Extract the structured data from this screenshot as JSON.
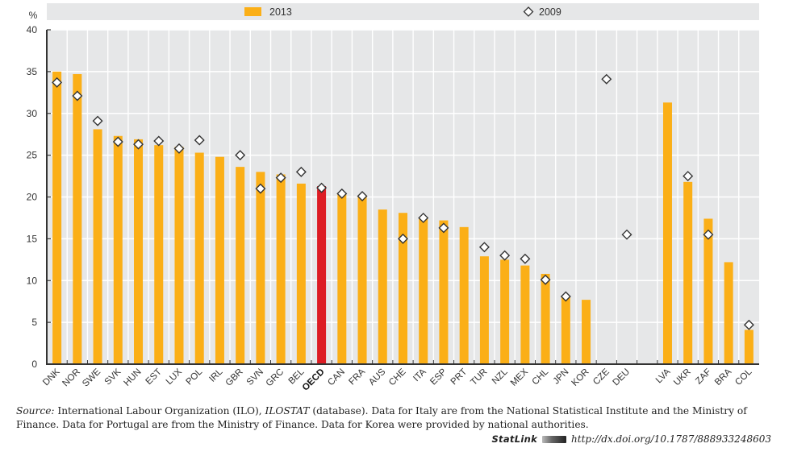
{
  "chart_data": {
    "type": "bar",
    "title": "",
    "ylabel": "%",
    "xlabel": "",
    "ylim": [
      0,
      40
    ],
    "yticks": [
      0,
      5,
      10,
      15,
      20,
      25,
      30,
      35,
      40
    ],
    "grid": true,
    "legend_position": "top",
    "categories": [
      "DNK",
      "NOR",
      "SWE",
      "SVK",
      "HUN",
      "EST",
      "LUX",
      "POL",
      "IRL",
      "GBR",
      "SVN",
      "GRC",
      "BEL",
      "OECD",
      "CAN",
      "FRA",
      "AUS",
      "CHE",
      "ITA",
      "ESP",
      "PRT",
      "TUR",
      "NZL",
      "MEX",
      "CHL",
      "JPN",
      "KOR",
      "CZE",
      "DEU",
      "",
      "LVA",
      "UKR",
      "ZAF",
      "BRA",
      "COL"
    ],
    "highlight_category": "OECD",
    "series": [
      {
        "name": "2013",
        "type": "bar",
        "color": "#FBAF17",
        "highlight_color": "#DD1C24",
        "values": [
          35.0,
          34.7,
          28.1,
          27.3,
          26.9,
          26.2,
          26.0,
          25.3,
          24.8,
          23.6,
          23.0,
          22.7,
          21.6,
          21.3,
          20.4,
          20.0,
          18.5,
          18.1,
          17.5,
          17.2,
          16.4,
          12.9,
          12.5,
          11.8,
          10.8,
          8.0,
          7.7,
          null,
          null,
          null,
          31.3,
          21.8,
          17.4,
          12.2,
          4.1
        ]
      },
      {
        "name": "2009",
        "type": "marker",
        "marker": "diamond",
        "color": "#FFFFFF",
        "values": [
          33.7,
          32.1,
          29.1,
          26.6,
          26.3,
          26.7,
          25.8,
          26.8,
          null,
          25.0,
          21.0,
          22.3,
          23.0,
          21.1,
          20.4,
          20.1,
          null,
          15.0,
          17.5,
          16.3,
          null,
          14.0,
          13.0,
          12.6,
          10.1,
          8.1,
          null,
          34.1,
          15.5,
          null,
          null,
          22.5,
          15.5,
          null,
          4.7
        ]
      }
    ]
  },
  "legend": {
    "items": [
      {
        "label": "2013",
        "symbol": "bar-swatch"
      },
      {
        "label": "2009",
        "symbol": "diamond"
      }
    ]
  },
  "footer": {
    "source_label": "Source:",
    "source_text_1": " International Labour Organization (ILO), ",
    "source_db": "ILOSTAT",
    "source_text_2": " (database). Data for Italy are from the National Statistical Institute and the Ministry of Finance. Data for Portugal are from the Ministry of Finance. Data for Korea were provided by national authorities.",
    "statlink_label": "StatLink",
    "statlink_url": "http://dx.doi.org/10.1787/888933248603"
  }
}
